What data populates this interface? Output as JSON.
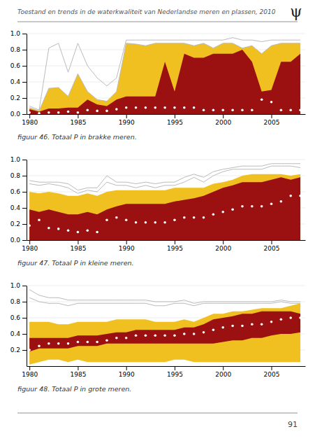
{
  "title": "Toestand en trends in de waterkwaliteit van Nederlandse meren en plassen, 2010",
  "annotations": [
    "ψ",
    "91"
  ],
  "chart_data": [
    {
      "type": "line",
      "title": "figuur 46.   Totaal P in brakke meren.",
      "x": [
        1980,
        1981,
        1982,
        1983,
        1984,
        1985,
        1986,
        1987,
        1988,
        1989,
        1990,
        1991,
        1992,
        1993,
        1994,
        1995,
        1996,
        1997,
        1998,
        1999,
        2000,
        2001,
        2002,
        2003,
        2004,
        2005,
        2006,
        2007,
        2008
      ],
      "xlim": [
        1979.7,
        2008.5
      ],
      "ylim": [
        0,
        1
      ],
      "xticks": [
        1980,
        1985,
        1990,
        1995,
        2000,
        2005
      ],
      "yticks": [
        {
          "value": 0,
          "label": "0.0"
        },
        0.2,
        0.4,
        0.6,
        0.8,
        {
          "value": 1,
          "label": "1.0"
        }
      ],
      "grid": true,
      "series": [
        {
          "type": "area",
          "color": "#F0C020",
          "lower": [
            0.0,
            0.0,
            0.0,
            0.0,
            0.0,
            0.0,
            0.0,
            0.0,
            0.0,
            0.0,
            0.0,
            0.0,
            0.0,
            0.0,
            0.0,
            0.0,
            0.0,
            0.0,
            0.0,
            0.0,
            0.0,
            0.0,
            0.0,
            0.0,
            0.0,
            0.0,
            0.0,
            0.0,
            0.0
          ],
          "values": [
            0.08,
            0.04,
            0.32,
            0.33,
            0.22,
            0.5,
            0.28,
            0.18,
            0.16,
            0.28,
            0.88,
            0.87,
            0.85,
            0.88,
            0.88,
            0.88,
            0.88,
            0.85,
            0.88,
            0.82,
            0.88,
            0.88,
            0.82,
            0.85,
            0.75,
            0.85,
            0.88,
            0.88,
            0.88
          ]
        },
        {
          "type": "area",
          "color": "#9B1010",
          "lower": [
            0.0,
            0.0,
            0.0,
            0.0,
            0.0,
            0.0,
            0.0,
            0.0,
            0.0,
            0.0,
            0.0,
            0.0,
            0.0,
            0.0,
            0.0,
            0.0,
            0.0,
            0.0,
            0.0,
            0.0,
            0.0,
            0.0,
            0.0,
            0.0,
            0.0,
            0.0,
            0.0,
            0.0,
            0.0
          ],
          "values": [
            0.06,
            0.03,
            0.07,
            0.07,
            0.08,
            0.08,
            0.18,
            0.12,
            0.1,
            0.18,
            0.22,
            0.22,
            0.22,
            0.22,
            0.65,
            0.28,
            0.75,
            0.7,
            0.7,
            0.75,
            0.75,
            0.75,
            0.8,
            0.65,
            0.28,
            0.3,
            0.65,
            0.65,
            0.75
          ]
        },
        {
          "type": "line",
          "color": "#bbbbbb",
          "values": [
            0.1,
            0.05,
            0.82,
            0.88,
            0.52,
            0.88,
            0.6,
            0.45,
            0.35,
            0.45,
            0.92,
            0.92,
            0.92,
            0.92,
            0.92,
            0.92,
            0.92,
            0.92,
            0.92,
            0.92,
            0.92,
            0.95,
            0.92,
            0.92,
            0.9,
            0.92,
            0.92,
            0.92,
            0.92
          ]
        },
        {
          "type": "line",
          "color": "#bbbbbb",
          "values": [
            0.08,
            0.04,
            0.32,
            0.33,
            0.22,
            0.5,
            0.28,
            0.18,
            0.16,
            0.28,
            0.88,
            0.87,
            0.85,
            0.88,
            0.88,
            0.88,
            0.88,
            0.85,
            0.88,
            0.82,
            0.88,
            0.88,
            0.82,
            0.85,
            0.75,
            0.85,
            0.88,
            0.88,
            0.88
          ]
        },
        {
          "type": "scatter",
          "color": "#ffffff",
          "marker": "circle",
          "values": [
            0.02,
            0.01,
            0.02,
            0.02,
            0.03,
            0.02,
            0.05,
            0.04,
            0.04,
            0.06,
            0.08,
            0.08,
            0.08,
            0.08,
            0.08,
            0.08,
            0.08,
            0.08,
            0.05,
            0.05,
            0.05,
            0.05,
            0.05,
            0.05,
            0.18,
            0.15,
            0.05,
            0.05,
            0.05
          ]
        }
      ]
    },
    {
      "type": "line",
      "title": "figuur 47.   Totaal P in kleine meren.",
      "x": [
        1980,
        1981,
        1982,
        1983,
        1984,
        1985,
        1986,
        1987,
        1988,
        1989,
        1990,
        1991,
        1992,
        1993,
        1994,
        1995,
        1996,
        1997,
        1998,
        1999,
        2000,
        2001,
        2002,
        2003,
        2004,
        2005,
        2006,
        2007,
        2008
      ],
      "xlim": [
        1979.7,
        2008.5
      ],
      "ylim": [
        0,
        1
      ],
      "xticks": [
        1980,
        1985,
        1990,
        1995,
        2000,
        2005
      ],
      "yticks": [
        {
          "value": 0,
          "label": "0.0"
        },
        0.2,
        0.4,
        0.6,
        0.8,
        {
          "value": 1,
          "label": "1.0"
        }
      ],
      "grid": true,
      "series": [
        {
          "type": "area",
          "color": "#F0C020",
          "lower": [
            0.0,
            0.0,
            0.0,
            0.0,
            0.0,
            0.0,
            0.0,
            0.0,
            0.0,
            0.0,
            0.0,
            0.0,
            0.0,
            0.0,
            0.0,
            0.0,
            0.0,
            0.0,
            0.0,
            0.0,
            0.0,
            0.0,
            0.0,
            0.0,
            0.0,
            0.0,
            0.0,
            0.0,
            0.0
          ],
          "values": [
            0.6,
            0.58,
            0.6,
            0.58,
            0.55,
            0.55,
            0.58,
            0.55,
            0.6,
            0.62,
            0.62,
            0.62,
            0.62,
            0.62,
            0.62,
            0.65,
            0.65,
            0.65,
            0.65,
            0.7,
            0.72,
            0.75,
            0.8,
            0.82,
            0.82,
            0.82,
            0.82,
            0.8,
            0.82
          ]
        },
        {
          "type": "area",
          "color": "#9B1010",
          "lower": [
            0.0,
            0.0,
            0.0,
            0.0,
            0.0,
            0.0,
            0.0,
            0.0,
            0.0,
            0.0,
            0.0,
            0.0,
            0.0,
            0.0,
            0.0,
            0.0,
            0.0,
            0.0,
            0.0,
            0.0,
            0.0,
            0.0,
            0.0,
            0.0,
            0.0,
            0.0,
            0.0,
            0.0,
            0.0
          ],
          "values": [
            0.38,
            0.35,
            0.38,
            0.35,
            0.32,
            0.32,
            0.35,
            0.32,
            0.38,
            0.42,
            0.45,
            0.45,
            0.45,
            0.45,
            0.45,
            0.48,
            0.5,
            0.52,
            0.55,
            0.6,
            0.65,
            0.68,
            0.72,
            0.72,
            0.72,
            0.75,
            0.78,
            0.75,
            0.78
          ]
        },
        {
          "type": "line",
          "color": "#bbbbbb",
          "values": [
            0.74,
            0.72,
            0.72,
            0.72,
            0.7,
            0.62,
            0.65,
            0.65,
            0.8,
            0.72,
            0.72,
            0.7,
            0.72,
            0.7,
            0.72,
            0.72,
            0.78,
            0.82,
            0.78,
            0.85,
            0.88,
            0.9,
            0.92,
            0.92,
            0.92,
            0.95,
            0.95,
            0.95,
            0.95
          ]
        },
        {
          "type": "line",
          "color": "#bbbbbb",
          "values": [
            0.7,
            0.68,
            0.7,
            0.68,
            0.65,
            0.58,
            0.62,
            0.6,
            0.72,
            0.68,
            0.68,
            0.65,
            0.68,
            0.65,
            0.68,
            0.68,
            0.72,
            0.78,
            0.72,
            0.8,
            0.85,
            0.88,
            0.88,
            0.88,
            0.88,
            0.92,
            0.92,
            0.92,
            0.9
          ]
        },
        {
          "type": "scatter",
          "color": "#ffffff",
          "marker": "circle",
          "values": [
            0.18,
            0.25,
            0.15,
            0.14,
            0.12,
            0.1,
            0.12,
            0.1,
            0.25,
            0.28,
            0.25,
            0.22,
            0.22,
            0.22,
            0.22,
            0.25,
            0.28,
            0.28,
            0.28,
            0.32,
            0.35,
            0.38,
            0.42,
            0.42,
            0.42,
            0.45,
            0.48,
            0.55,
            0.55
          ]
        }
      ]
    },
    {
      "type": "line",
      "title": "figuur 48.   Totaal P in grote meren.",
      "x": [
        1980,
        1981,
        1982,
        1983,
        1984,
        1985,
        1986,
        1987,
        1988,
        1989,
        1990,
        1991,
        1992,
        1993,
        1994,
        1995,
        1996,
        1997,
        1998,
        1999,
        2000,
        2001,
        2002,
        2003,
        2004,
        2005,
        2006,
        2007,
        2008
      ],
      "xlim": [
        1979.7,
        2008.5
      ],
      "ylim": [
        0,
        1
      ],
      "xticks": [
        1980,
        1985,
        1990,
        1995,
        2000,
        2005
      ],
      "yticks": [
        0.2,
        0.4,
        0.6,
        0.8,
        {
          "value": 1,
          "label": "1.0"
        }
      ],
      "grid": true,
      "series": [
        {
          "type": "area",
          "color": "#F0C020",
          "lower": [
            0.02,
            0.05,
            0.08,
            0.08,
            0.05,
            0.08,
            0.05,
            0.05,
            0.05,
            0.05,
            0.05,
            0.05,
            0.05,
            0.05,
            0.05,
            0.08,
            0.08,
            0.05,
            0.05,
            0.05,
            0.05,
            0.05,
            0.05,
            0.05,
            0.05,
            0.05,
            0.05,
            0.05,
            0.05
          ],
          "values": [
            0.55,
            0.55,
            0.55,
            0.52,
            0.52,
            0.55,
            0.55,
            0.55,
            0.55,
            0.58,
            0.58,
            0.58,
            0.58,
            0.55,
            0.55,
            0.55,
            0.58,
            0.55,
            0.6,
            0.65,
            0.65,
            0.68,
            0.68,
            0.7,
            0.72,
            0.72,
            0.72,
            0.75,
            0.78
          ]
        },
        {
          "type": "area",
          "color": "#9B1010",
          "lower": [
            0.18,
            0.22,
            0.22,
            0.22,
            0.22,
            0.25,
            0.25,
            0.25,
            0.28,
            0.28,
            0.28,
            0.28,
            0.28,
            0.28,
            0.28,
            0.28,
            0.28,
            0.28,
            0.28,
            0.28,
            0.3,
            0.32,
            0.32,
            0.35,
            0.35,
            0.38,
            0.4,
            0.4,
            0.42
          ],
          "values": [
            0.35,
            0.35,
            0.35,
            0.35,
            0.35,
            0.38,
            0.38,
            0.38,
            0.4,
            0.42,
            0.42,
            0.45,
            0.45,
            0.45,
            0.45,
            0.45,
            0.48,
            0.48,
            0.52,
            0.58,
            0.6,
            0.62,
            0.65,
            0.65,
            0.68,
            0.68,
            0.68,
            0.68,
            0.65
          ]
        },
        {
          "type": "line",
          "color": "#bbbbbb",
          "values": [
            0.95,
            0.88,
            0.85,
            0.85,
            0.82,
            0.82,
            0.82,
            0.82,
            0.82,
            0.82,
            0.82,
            0.82,
            0.82,
            0.8,
            0.8,
            0.8,
            0.82,
            0.78,
            0.8,
            0.8,
            0.8,
            0.8,
            0.8,
            0.8,
            0.8,
            0.8,
            0.82,
            0.8,
            0.8
          ]
        },
        {
          "type": "line",
          "color": "#bbbbbb",
          "values": [
            0.85,
            0.8,
            0.78,
            0.78,
            0.75,
            0.78,
            0.78,
            0.78,
            0.78,
            0.78,
            0.78,
            0.78,
            0.78,
            0.75,
            0.75,
            0.78,
            0.78,
            0.75,
            0.78,
            0.78,
            0.78,
            0.78,
            0.78,
            0.78,
            0.78,
            0.78,
            0.8,
            0.78,
            0.78
          ]
        },
        {
          "type": "scatter",
          "color": "#ffffff",
          "marker": "circle",
          "values": [
            0.2,
            0.25,
            0.28,
            0.28,
            0.28,
            0.3,
            0.3,
            0.3,
            0.32,
            0.35,
            0.35,
            0.38,
            0.38,
            0.38,
            0.38,
            0.38,
            0.4,
            0.4,
            0.42,
            0.45,
            0.48,
            0.5,
            0.5,
            0.52,
            0.52,
            0.55,
            0.58,
            0.6,
            0.6
          ]
        }
      ]
    }
  ]
}
